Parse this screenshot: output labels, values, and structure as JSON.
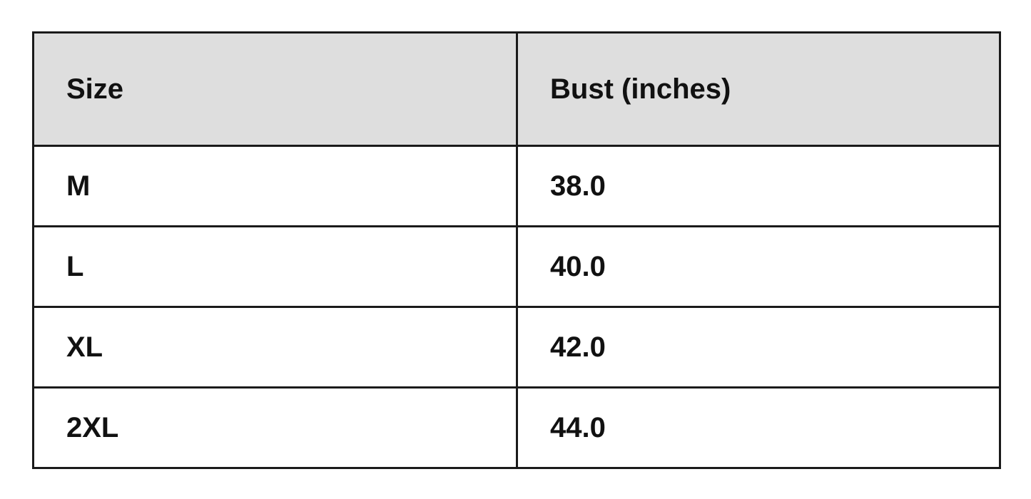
{
  "table": {
    "headers": [
      "Size",
      "Bust (inches)"
    ],
    "rows": [
      [
        "M",
        "38.0"
      ],
      [
        "L",
        "40.0"
      ],
      [
        "XL",
        "42.0"
      ],
      [
        "2XL",
        "44.0"
      ]
    ]
  },
  "colors": {
    "header_bg": "#dedede",
    "border": "#1a1a1a"
  }
}
